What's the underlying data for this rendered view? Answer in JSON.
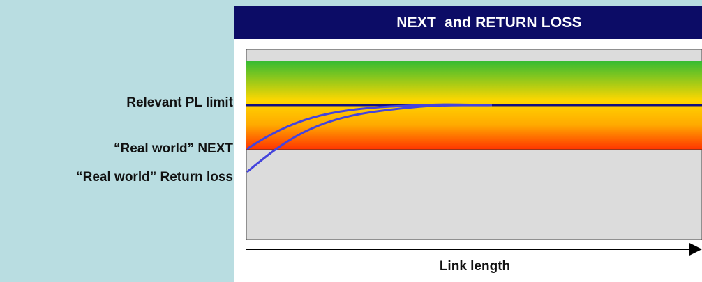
{
  "title": "NEXT  and RETURN LOSS",
  "labels": {
    "pl_limit": "Relevant PL limit",
    "next": "“Real world” NEXT",
    "return_loss": "“Real world” Return loss"
  },
  "x_axis_label": "Link length",
  "colors": {
    "background": "#b9dde1",
    "title_bar": "#0c0c66",
    "plot_area": "#dcdcdc",
    "gradient_top": "#33bb33",
    "gradient_mid": "#ffd700",
    "gradient_bottom": "#ff3300",
    "curves": "#4444dd",
    "limit_line": "#101080"
  }
}
